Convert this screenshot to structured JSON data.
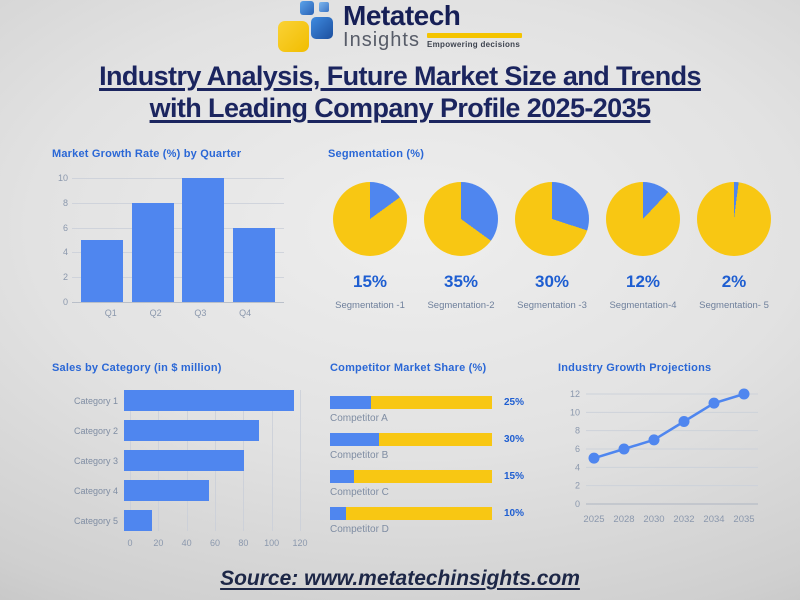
{
  "logo": {
    "name": "Metatech",
    "sub": "Insights",
    "tagline": "Empowering decisions"
  },
  "title": {
    "line1": "Industry Analysis, Future Market Size and Trends",
    "line2": "with Leading Company Profile 2025-2035"
  },
  "source": "Source: www.metatechinsights.com",
  "colors": {
    "blue": "#4f86ef",
    "yellow": "#f8c713",
    "navy": "#1b255f",
    "chart_title_blue": "#2a67d6",
    "pct_blue": "#1e5ed1"
  },
  "chart_data": [
    {
      "id": "quarter_growth",
      "type": "bar",
      "title": "Market Growth Rate (%) by Quarter",
      "categories": [
        "Q1",
        "Q2",
        "Q3",
        "Q4"
      ],
      "values": [
        5,
        8,
        10,
        6
      ],
      "ylim": [
        0,
        10
      ],
      "yticks": [
        0,
        2,
        4,
        6,
        8,
        10
      ],
      "grid": true
    },
    {
      "id": "segmentation",
      "type": "pie",
      "title": "Segmentation (%)",
      "slices": [
        {
          "label": "Segmentation -1",
          "value": 15,
          "value_label": "15%"
        },
        {
          "label": "Segmentation-2",
          "value": 35,
          "value_label": "35%"
        },
        {
          "label": "Segmentation -3",
          "value": 30,
          "value_label": "30%"
        },
        {
          "label": "Segmentation-4",
          "value": 12,
          "value_label": "12%"
        },
        {
          "label": "Segmentation- 5",
          "value": 2,
          "value_label": "2%"
        }
      ]
    },
    {
      "id": "sales_by_category",
      "type": "bar",
      "orientation": "horizontal",
      "title": "Sales by Category (in $ million)",
      "categories": [
        "Category 1",
        "Category 2",
        "Category 3",
        "Category 4",
        "Category 5"
      ],
      "values": [
        120,
        95,
        85,
        60,
        20
      ],
      "xlim": [
        0,
        120
      ],
      "xticks": [
        0,
        20,
        40,
        60,
        80,
        100,
        120
      ],
      "grid": true
    },
    {
      "id": "competitor_share",
      "type": "bar",
      "orientation": "horizontal-stacked",
      "title": "Competitor Market Share (%)",
      "categories": [
        "Competitor A",
        "Competitor B",
        "Competitor C",
        "Competitor D"
      ],
      "values": [
        25,
        30,
        15,
        10
      ],
      "value_labels": [
        "25%",
        "30%",
        "15%",
        "10%"
      ],
      "total": 100
    },
    {
      "id": "growth_projections",
      "type": "line",
      "title": "Industry Growth Projections",
      "x": [
        "2025",
        "2028",
        "2030",
        "2032",
        "2034",
        "2035"
      ],
      "values": [
        5,
        6,
        7,
        9,
        11,
        12
      ],
      "ylim": [
        0,
        12
      ],
      "yticks": [
        0,
        2,
        4,
        6,
        8,
        10,
        12
      ],
      "grid": true
    }
  ]
}
